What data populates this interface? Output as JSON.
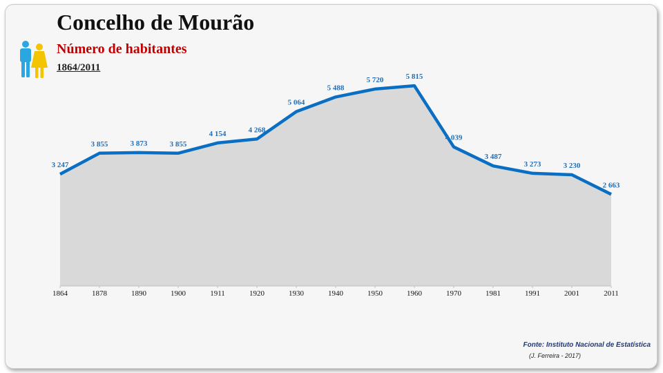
{
  "header": {
    "title": "Concelho de Mourão",
    "subtitle": "Número de habitantes",
    "period": "1864/2011"
  },
  "icons": {
    "people": "male-female-people-icon"
  },
  "footer": {
    "source": "Fonte: Instituto Nacional de Estatística",
    "author": "(J. Ferreira - 2017)"
  },
  "colors": {
    "line": "#0a6fc2",
    "area": "#d9d9d9",
    "label": "#1f6fb8",
    "title_red": "#c00000",
    "male": "#2aa7e0",
    "female": "#f5c400"
  },
  "chart_data": {
    "type": "area",
    "categories": [
      "1864",
      "1878",
      "1890",
      "1900",
      "1911",
      "1920",
      "1930",
      "1940",
      "1950",
      "1960",
      "1970",
      "1981",
      "1991",
      "2001",
      "2011"
    ],
    "values": [
      3247,
      3855,
      3873,
      3855,
      4154,
      4268,
      5064,
      5488,
      5720,
      5815,
      4039,
      3487,
      3273,
      3230,
      2663
    ],
    "labels": [
      "3 247",
      "3 855",
      "3 873",
      "3 855",
      "4 154",
      "4 268",
      "5 064",
      "5 488",
      "5 720",
      "5 815",
      "4 039",
      "3 487",
      "3 273",
      "3 230",
      "2 663"
    ],
    "title": "Concelho de Mourão",
    "subtitle": "Número de habitantes",
    "xlabel": "",
    "ylabel": "",
    "ylim": [
      0,
      6500
    ],
    "grid": false,
    "legend": "none"
  }
}
